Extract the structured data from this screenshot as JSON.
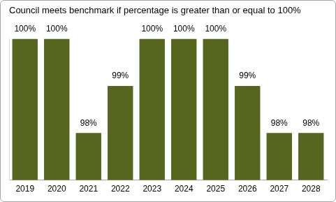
{
  "chart_data": {
    "type": "bar",
    "title": "Council meets benchmark if percentage is greater than or equal to 100%",
    "categories": [
      "2019",
      "2020",
      "2021",
      "2022",
      "2023",
      "2024",
      "2025",
      "2026",
      "2027",
      "2028"
    ],
    "values": [
      100,
      100,
      98,
      99,
      100,
      100,
      100,
      99,
      98,
      98
    ],
    "value_labels": [
      "100%",
      "100%",
      "98%",
      "99%",
      "100%",
      "100%",
      "100%",
      "99%",
      "98%",
      "98%"
    ],
    "color": "#56661f",
    "ylim": [
      97,
      100
    ],
    "grid": false,
    "data_labels": true,
    "tick_labels": "x"
  }
}
